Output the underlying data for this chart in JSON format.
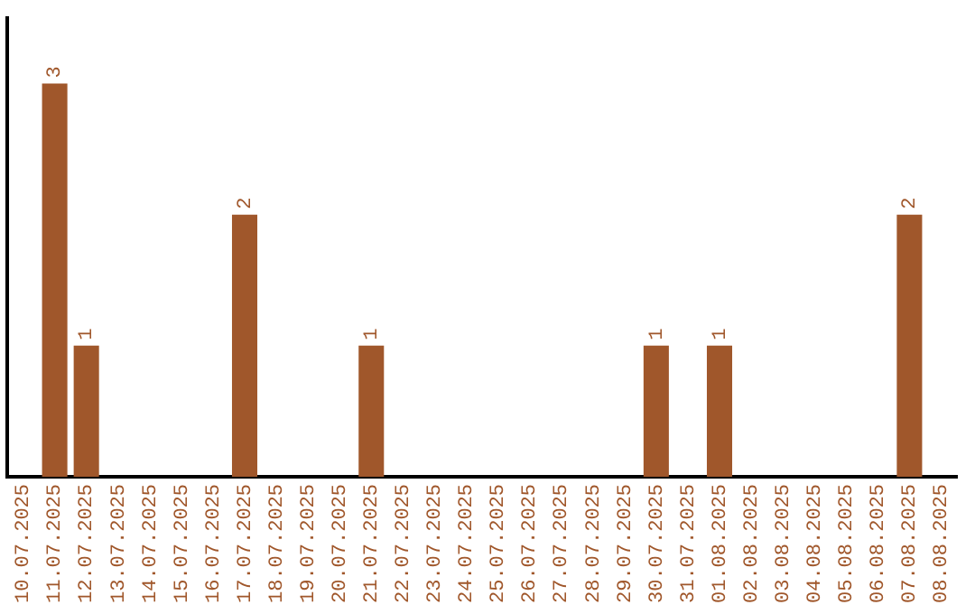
{
  "chart_data": {
    "type": "bar",
    "categories": [
      "10.07.2025",
      "11.07.2025",
      "12.07.2025",
      "13.07.2025",
      "14.07.2025",
      "15.07.2025",
      "16.07.2025",
      "17.07.2025",
      "18.07.2025",
      "19.07.2025",
      "20.07.2025",
      "21.07.2025",
      "22.07.2025",
      "23.07.2025",
      "24.07.2025",
      "25.07.2025",
      "26.07.2025",
      "27.07.2025",
      "28.07.2025",
      "29.07.2025",
      "30.07.2025",
      "31.07.2025",
      "01.08.2025",
      "02.08.2025",
      "03.08.2025",
      "04.08.2025",
      "05.08.2025",
      "06.08.2025",
      "07.08.2025",
      "08.08.2025"
    ],
    "values": [
      0,
      3,
      1,
      0,
      0,
      0,
      0,
      2,
      0,
      0,
      0,
      1,
      0,
      0,
      0,
      0,
      0,
      0,
      0,
      0,
      1,
      0,
      1,
      0,
      0,
      0,
      0,
      0,
      2,
      0
    ],
    "value_labels": [
      null,
      "3",
      "1",
      null,
      null,
      null,
      null,
      "2",
      null,
      null,
      null,
      "1",
      null,
      null,
      null,
      null,
      null,
      null,
      null,
      null,
      "1",
      null,
      "1",
      null,
      null,
      null,
      null,
      null,
      "2",
      null
    ],
    "color": "#a0572b",
    "grid": false,
    "legend": false,
    "tick_labels": "x"
  }
}
